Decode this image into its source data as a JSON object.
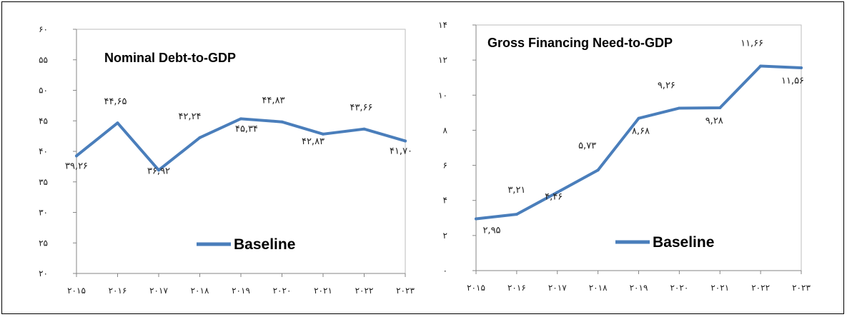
{
  "chart_data": [
    {
      "type": "line",
      "title": "Nominal Debt-to-GDP",
      "categories": [
        "۲۰۱۵",
        "۲۰۱۶",
        "۲۰۱۷",
        "۲۰۱۸",
        "۲۰۱۹",
        "۲۰۲۰",
        "۲۰۲۱",
        "۲۰۲۲",
        "۲۰۲۳"
      ],
      "x": [
        2015,
        2016,
        2017,
        2018,
        2019,
        2020,
        2021,
        2022,
        2023
      ],
      "series": [
        {
          "name": "Baseline",
          "color": "#4a7ebb",
          "values": [
            39.26,
            44.65,
            36.92,
            42.24,
            45.34,
            44.83,
            42.83,
            43.66,
            41.7
          ],
          "labels": [
            "۳۹,۲۶",
            "۴۴,۶۵",
            "۳۶,۹۲",
            "۴۲,۲۴",
            "۴۵,۳۴",
            "۴۴,۸۳",
            "۴۲,۸۳",
            "۴۳,۶۶",
            "۴۱,۷۰"
          ]
        }
      ],
      "ylim": [
        20,
        60
      ],
      "yticks": [
        20,
        25,
        30,
        35,
        40,
        45,
        50,
        55,
        60
      ],
      "ytick_labels": [
        "۲۰",
        "۲۵",
        "۳۰",
        "۳۵",
        "۴۰",
        "۴۵",
        "۵۰",
        "۵۵",
        "۶۰"
      ],
      "xlabel": "",
      "ylabel": "",
      "grid": false,
      "legend": "bottom-right"
    },
    {
      "type": "line",
      "title": "Gross Financing Need-to-GDP",
      "categories": [
        "۲۰۱۵",
        "۲۰۱۶",
        "۲۰۱۷",
        "۲۰۱۸",
        "۲۰۱۹",
        "۲۰۲۰",
        "۲۰۲۱",
        "۲۰۲۲",
        "۲۰۲۳"
      ],
      "x": [
        2015,
        2016,
        2017,
        2018,
        2019,
        2020,
        2021,
        2022,
        2023
      ],
      "series": [
        {
          "name": "Baseline",
          "color": "#4a7ebb",
          "values": [
            2.95,
            3.21,
            4.46,
            5.73,
            8.68,
            9.26,
            9.28,
            11.66,
            11.56
          ],
          "labels": [
            "۲,۹۵",
            "۳,۲۱",
            "۴,۴۶",
            "۵,۷۳",
            "۸,۶۸",
            "۹,۲۶",
            "۹,۲۸",
            "۱۱,۶۶",
            "۱۱,۵۶"
          ]
        }
      ],
      "ylim": [
        0,
        14
      ],
      "yticks": [
        0,
        2,
        4,
        6,
        8,
        10,
        12,
        14
      ],
      "ytick_labels": [
        "۰",
        "۲",
        "۴",
        "۶",
        "۸",
        "۱۰",
        "۱۲",
        "۱۴"
      ],
      "xlabel": "",
      "ylabel": "",
      "grid": false,
      "legend": "bottom-right"
    }
  ]
}
